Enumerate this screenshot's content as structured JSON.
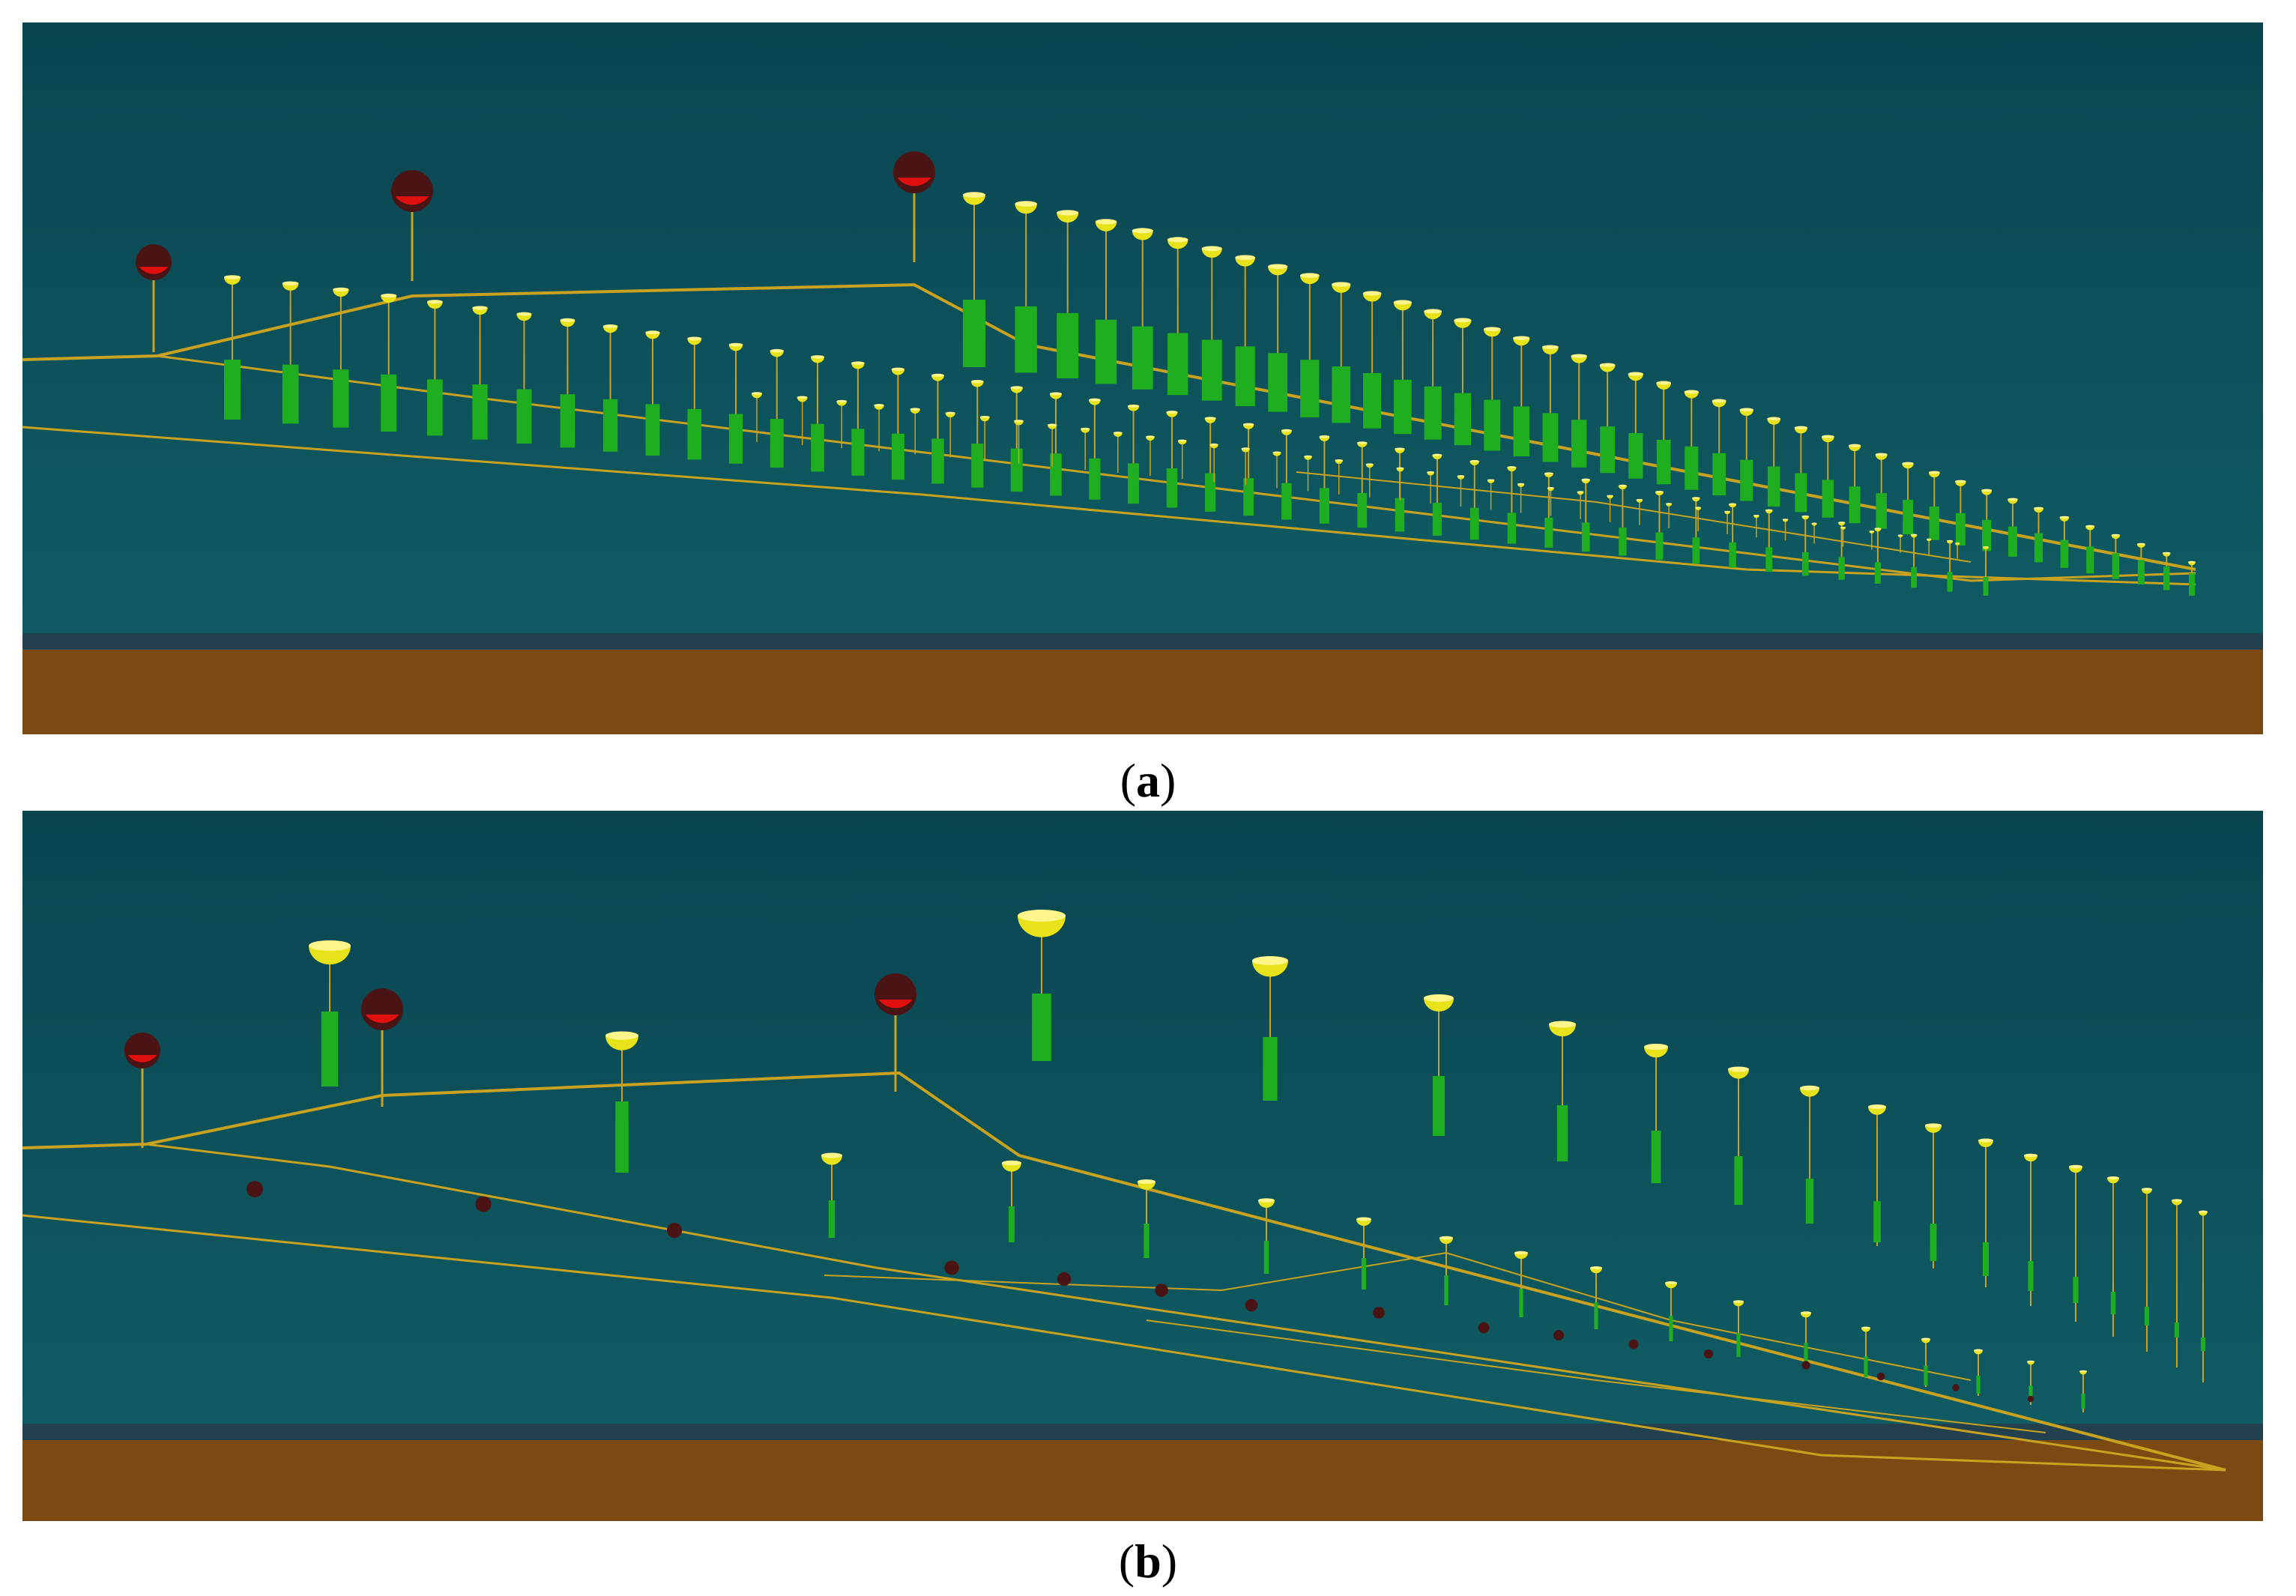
{
  "panels": [
    {
      "id": "a",
      "caption_open": "(",
      "caption_letter": "a",
      "caption_close": ")"
    },
    {
      "id": "b",
      "caption_open": "(",
      "caption_letter": "b",
      "caption_close": ")"
    }
  ],
  "colors": {
    "water_top": "#0c4a52",
    "water_bottom": "#0f5c63",
    "seabed": "#7a4a12",
    "seabed_edge": "#23404f",
    "rope": "#c9a21f",
    "float_yellow": "#e8e21a",
    "net_green": "#1fae1f",
    "buoy_dark_red": "#4a1414",
    "buoy_red": "#e01010"
  },
  "icons": {
    "large_buoy": "dark-red-sphere-buoy",
    "small_float": "yellow-float",
    "net_cage": "green-net-block"
  }
}
